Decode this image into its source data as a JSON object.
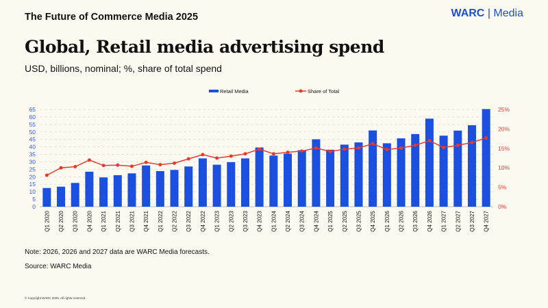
{
  "header": {
    "report_title": "The Future of Commerce Media 2025",
    "logo_brand": "WARC",
    "logo_separator": "|",
    "logo_product": "Media"
  },
  "footer": {
    "note": "Note: 2026, 2026 and 2027 data are WARC Media forecasts.",
    "source": "Source: WARC Media",
    "copyright": "© Copyright WARC 2025. All rights reserved."
  },
  "colors": {
    "bar": "#1a4fdf",
    "line": "#e8392b",
    "left_axis": "#2a5ae0",
    "right_axis": "#e8392b",
    "background": "#fcf9f1"
  },
  "chart_data": {
    "type": "bar+line",
    "title": "Global, Retail media advertising spend",
    "subtitle": "USD, billions, nominal; %, share of total spend",
    "legend_position": "top",
    "grid": true,
    "categories": [
      "Q1 2020",
      "Q2 2020",
      "Q3 2020",
      "Q4 2020",
      "Q1 2021",
      "Q2 2021",
      "Q3 2021",
      "Q4 2021",
      "Q1 2022",
      "Q2 2022",
      "Q3 2022",
      "Q4 2022",
      "Q1 2023",
      "Q2 2023",
      "Q3 2023",
      "Q4 2023",
      "Q1 2024",
      "Q2 2024",
      "Q3 2024",
      "Q4 2024",
      "Q1 2025",
      "Q2 2025",
      "Q3 2025",
      "Q4 2025",
      "Q1 2026",
      "Q2 2026",
      "Q3 2026",
      "Q4 2026",
      "Q1 2027",
      "Q2 2027",
      "Q3 2027",
      "Q4 2027"
    ],
    "series": [
      {
        "name": "Retail Media",
        "type": "bar",
        "axis": "left",
        "values": [
          12.5,
          13.4,
          15.9,
          23.4,
          19.6,
          21.1,
          22.3,
          27.6,
          23.8,
          24.6,
          26.9,
          32.3,
          28.1,
          29.8,
          32.3,
          39.6,
          34.2,
          35.5,
          37.8,
          45.1,
          38.1,
          41.5,
          43.0,
          51.0,
          42.4,
          45.7,
          48.6,
          58.9,
          47.5,
          50.9,
          54.5,
          65.3
        ]
      },
      {
        "name": "Share of Total",
        "type": "line",
        "axis": "right",
        "values": [
          8.1,
          10.0,
          10.3,
          12.0,
          10.6,
          10.7,
          10.4,
          11.4,
          10.8,
          11.2,
          12.3,
          13.4,
          12.5,
          13.0,
          13.6,
          14.8,
          13.6,
          14.0,
          14.3,
          15.1,
          14.2,
          14.8,
          15.1,
          16.2,
          14.7,
          15.1,
          15.8,
          17.0,
          15.2,
          15.8,
          16.5,
          17.7
        ]
      }
    ],
    "y_left": {
      "range": [
        0,
        65
      ],
      "ticks": [
        "0",
        "5",
        "10",
        "15",
        "20",
        "25",
        "30",
        "35",
        "40",
        "45",
        "50",
        "55",
        "60",
        "65"
      ]
    },
    "y_right": {
      "range": [
        0,
        25
      ],
      "ticks": [
        "0%",
        "5%",
        "10%",
        "15%",
        "20%",
        "25%"
      ]
    }
  }
}
